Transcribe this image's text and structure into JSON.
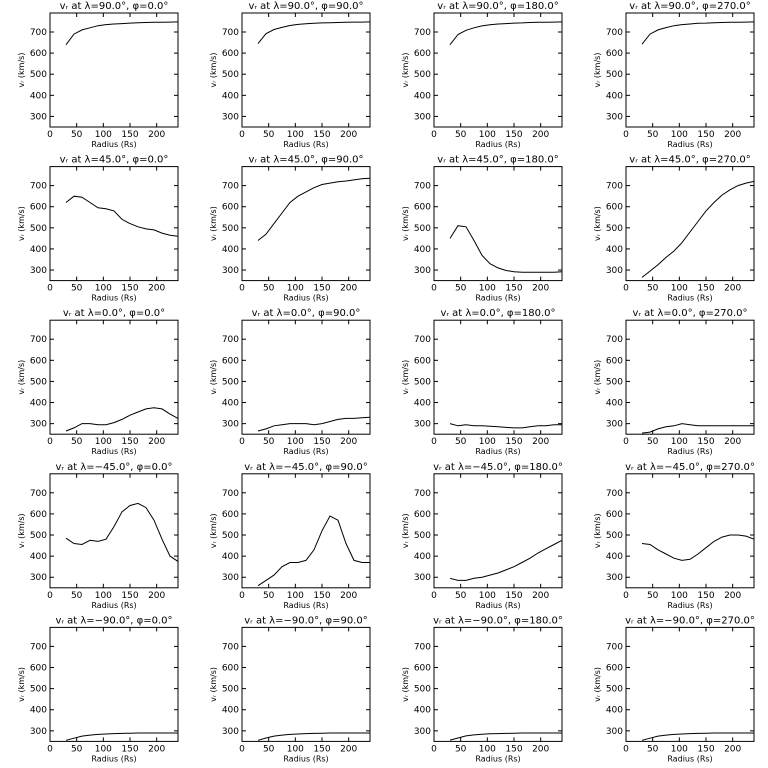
{
  "chart_data": [
    {
      "type": "line",
      "title": "vᵣ at λ=90.0°, φ=0.0°",
      "xlabel": "Radius (Rs)",
      "ylabel": "vᵣ (km/s)",
      "color": "#000000",
      "xlim": [
        0,
        240
      ],
      "xticks": [
        0,
        50,
        100,
        150,
        200
      ],
      "ylim": [
        250,
        790
      ],
      "yticks": [
        300,
        400,
        500,
        600,
        700
      ],
      "x": [
        30,
        45,
        60,
        75,
        90,
        105,
        120,
        135,
        150,
        165,
        180,
        195,
        210,
        225,
        240
      ],
      "values": [
        640,
        690,
        710,
        720,
        730,
        735,
        738,
        740,
        742,
        744,
        745,
        746,
        746,
        747,
        748
      ]
    },
    {
      "type": "line",
      "title": "vᵣ at λ=90.0°, φ=90.0°",
      "xlabel": "Radius (Rs)",
      "ylabel": "vᵣ (km/s)",
      "color": "#000000",
      "xlim": [
        0,
        240
      ],
      "xticks": [
        0,
        50,
        100,
        150,
        200
      ],
      "ylim": [
        250,
        790
      ],
      "yticks": [
        300,
        400,
        500,
        600,
        700
      ],
      "x": [
        30,
        45,
        60,
        75,
        90,
        105,
        120,
        135,
        150,
        165,
        180,
        195,
        210,
        225,
        240
      ],
      "values": [
        645,
        692,
        712,
        722,
        731,
        736,
        739,
        741,
        743,
        744,
        745,
        746,
        747,
        747,
        748
      ]
    },
    {
      "type": "line",
      "title": "vᵣ at λ=90.0°, φ=180.0°",
      "xlabel": "Radius (Rs)",
      "ylabel": "vᵣ (km/s)",
      "color": "#000000",
      "xlim": [
        0,
        240
      ],
      "xticks": [
        0,
        50,
        100,
        150,
        200
      ],
      "ylim": [
        250,
        790
      ],
      "yticks": [
        300,
        400,
        500,
        600,
        700
      ],
      "x": [
        30,
        45,
        60,
        75,
        90,
        105,
        120,
        135,
        150,
        165,
        180,
        195,
        210,
        225,
        240
      ],
      "values": [
        640,
        688,
        708,
        720,
        729,
        734,
        738,
        740,
        742,
        743,
        745,
        746,
        746,
        747,
        748
      ]
    },
    {
      "type": "line",
      "title": "vᵣ at λ=90.0°, φ=270.0°",
      "xlabel": "Radius (Rs)",
      "ylabel": "vᵣ (km/s)",
      "color": "#000000",
      "xlim": [
        0,
        240
      ],
      "xticks": [
        0,
        50,
        100,
        150,
        200
      ],
      "ylim": [
        250,
        790
      ],
      "yticks": [
        300,
        400,
        500,
        600,
        700
      ],
      "x": [
        30,
        45,
        60,
        75,
        90,
        105,
        120,
        135,
        150,
        165,
        180,
        195,
        210,
        225,
        240
      ],
      "values": [
        642,
        690,
        710,
        721,
        730,
        735,
        738,
        741,
        742,
        744,
        745,
        746,
        746,
        747,
        748
      ]
    },
    {
      "type": "line",
      "title": "vᵣ at λ=45.0°, φ=0.0°",
      "xlabel": "Radius (Rs)",
      "ylabel": "vᵣ (km/s)",
      "color": "#000000",
      "xlim": [
        0,
        240
      ],
      "xticks": [
        0,
        50,
        100,
        150,
        200
      ],
      "ylim": [
        250,
        790
      ],
      "yticks": [
        300,
        400,
        500,
        600,
        700
      ],
      "x": [
        30,
        45,
        60,
        75,
        90,
        105,
        120,
        135,
        150,
        165,
        180,
        195,
        210,
        225,
        240
      ],
      "values": [
        620,
        650,
        645,
        620,
        595,
        590,
        580,
        540,
        520,
        505,
        495,
        490,
        475,
        465,
        460
      ]
    },
    {
      "type": "line",
      "title": "vᵣ at λ=45.0°, φ=90.0°",
      "xlabel": "Radius (Rs)",
      "ylabel": "vᵣ (km/s)",
      "color": "#000000",
      "xlim": [
        0,
        240
      ],
      "xticks": [
        0,
        50,
        100,
        150,
        200
      ],
      "ylim": [
        250,
        790
      ],
      "yticks": [
        300,
        400,
        500,
        600,
        700
      ],
      "x": [
        30,
        45,
        60,
        75,
        90,
        105,
        120,
        135,
        150,
        165,
        180,
        195,
        210,
        225,
        240
      ],
      "values": [
        440,
        470,
        520,
        570,
        620,
        650,
        670,
        690,
        705,
        712,
        718,
        722,
        727,
        732,
        735
      ]
    },
    {
      "type": "line",
      "title": "vᵣ at λ=45.0°, φ=180.0°",
      "xlabel": "Radius (Rs)",
      "ylabel": "vᵣ (km/s)",
      "color": "#000000",
      "xlim": [
        0,
        240
      ],
      "xticks": [
        0,
        50,
        100,
        150,
        200
      ],
      "ylim": [
        250,
        790
      ],
      "yticks": [
        300,
        400,
        500,
        600,
        700
      ],
      "x": [
        30,
        45,
        60,
        75,
        90,
        105,
        120,
        135,
        150,
        165,
        180,
        195,
        210,
        225,
        240
      ],
      "values": [
        450,
        510,
        505,
        440,
        370,
        330,
        310,
        298,
        292,
        290,
        290,
        290,
        290,
        290,
        292
      ]
    },
    {
      "type": "line",
      "title": "vᵣ at λ=45.0°, φ=270.0°",
      "xlabel": "Radius (Rs)",
      "ylabel": "vᵣ (km/s)",
      "color": "#000000",
      "xlim": [
        0,
        240
      ],
      "xticks": [
        0,
        50,
        100,
        150,
        200
      ],
      "ylim": [
        250,
        790
      ],
      "yticks": [
        300,
        400,
        500,
        600,
        700
      ],
      "x": [
        30,
        45,
        60,
        75,
        90,
        105,
        120,
        135,
        150,
        165,
        180,
        195,
        210,
        225,
        240
      ],
      "values": [
        265,
        295,
        325,
        360,
        390,
        430,
        480,
        530,
        580,
        620,
        655,
        680,
        700,
        712,
        720
      ]
    },
    {
      "type": "line",
      "title": "vᵣ at λ=0.0°, φ=0.0°",
      "xlabel": "Radius (Rs)",
      "ylabel": "vᵣ (km/s)",
      "color": "#000000",
      "xlim": [
        0,
        240
      ],
      "xticks": [
        0,
        50,
        100,
        150,
        200
      ],
      "ylim": [
        250,
        790
      ],
      "yticks": [
        300,
        400,
        500,
        600,
        700
      ],
      "x": [
        30,
        45,
        60,
        75,
        90,
        105,
        120,
        135,
        150,
        165,
        180,
        195,
        210,
        225,
        240
      ],
      "values": [
        265,
        280,
        300,
        300,
        295,
        295,
        305,
        320,
        340,
        355,
        370,
        375,
        370,
        345,
        325
      ]
    },
    {
      "type": "line",
      "title": "vᵣ at λ=0.0°, φ=90.0°",
      "xlabel": "Radius (Rs)",
      "ylabel": "vᵣ (km/s)",
      "color": "#000000",
      "xlim": [
        0,
        240
      ],
      "xticks": [
        0,
        50,
        100,
        150,
        200
      ],
      "ylim": [
        250,
        790
      ],
      "yticks": [
        300,
        400,
        500,
        600,
        700
      ],
      "x": [
        30,
        45,
        60,
        75,
        90,
        105,
        120,
        135,
        150,
        165,
        180,
        195,
        210,
        225,
        240
      ],
      "values": [
        265,
        275,
        290,
        295,
        300,
        300,
        300,
        295,
        300,
        310,
        320,
        325,
        325,
        328,
        330
      ]
    },
    {
      "type": "line",
      "title": "vᵣ at λ=0.0°, φ=180.0°",
      "xlabel": "Radius (Rs)",
      "ylabel": "vᵣ (km/s)",
      "color": "#000000",
      "xlim": [
        0,
        240
      ],
      "xticks": [
        0,
        50,
        100,
        150,
        200
      ],
      "ylim": [
        250,
        790
      ],
      "yticks": [
        300,
        400,
        500,
        600,
        700
      ],
      "x": [
        30,
        45,
        60,
        75,
        90,
        105,
        120,
        135,
        150,
        165,
        180,
        195,
        210,
        225,
        240
      ],
      "values": [
        300,
        290,
        295,
        290,
        290,
        288,
        285,
        282,
        280,
        280,
        285,
        290,
        290,
        295,
        295
      ]
    },
    {
      "type": "line",
      "title": "vᵣ at λ=0.0°, φ=270.0°",
      "xlabel": "Radius (Rs)",
      "ylabel": "vᵣ (km/s)",
      "color": "#000000",
      "xlim": [
        0,
        240
      ],
      "xticks": [
        0,
        50,
        100,
        150,
        200
      ],
      "ylim": [
        250,
        790
      ],
      "yticks": [
        300,
        400,
        500,
        600,
        700
      ],
      "x": [
        30,
        45,
        60,
        75,
        90,
        105,
        120,
        135,
        150,
        165,
        180,
        195,
        210,
        225,
        240
      ],
      "values": [
        255,
        260,
        275,
        285,
        290,
        300,
        295,
        290,
        290,
        290,
        290,
        290,
        290,
        290,
        290
      ]
    },
    {
      "type": "line",
      "title": "vᵣ at λ=−45.0°, φ=0.0°",
      "xlabel": "Radius (Rs)",
      "ylabel": "vᵣ (km/s)",
      "color": "#000000",
      "xlim": [
        0,
        240
      ],
      "xticks": [
        0,
        50,
        100,
        150,
        200
      ],
      "ylim": [
        250,
        790
      ],
      "yticks": [
        300,
        400,
        500,
        600,
        700
      ],
      "x": [
        30,
        45,
        60,
        75,
        90,
        105,
        120,
        135,
        150,
        165,
        180,
        195,
        210,
        225,
        240
      ],
      "values": [
        485,
        460,
        455,
        475,
        470,
        480,
        540,
        610,
        640,
        650,
        630,
        570,
        480,
        400,
        375
      ]
    },
    {
      "type": "line",
      "title": "vᵣ at λ=−45.0°, φ=90.0°",
      "xlabel": "Radius (Rs)",
      "ylabel": "vᵣ (km/s)",
      "color": "#000000",
      "xlim": [
        0,
        240
      ],
      "xticks": [
        0,
        50,
        100,
        150,
        200
      ],
      "ylim": [
        250,
        790
      ],
      "yticks": [
        300,
        400,
        500,
        600,
        700
      ],
      "x": [
        30,
        45,
        60,
        75,
        90,
        105,
        120,
        135,
        150,
        165,
        180,
        195,
        210,
        225,
        240
      ],
      "values": [
        260,
        285,
        310,
        350,
        370,
        370,
        380,
        430,
        520,
        590,
        570,
        460,
        380,
        370,
        370
      ]
    },
    {
      "type": "line",
      "title": "vᵣ at λ=−45.0°, φ=180.0°",
      "xlabel": "Radius (Rs)",
      "ylabel": "vᵣ (km/s)",
      "color": "#000000",
      "xlim": [
        0,
        240
      ],
      "xticks": [
        0,
        50,
        100,
        150,
        200
      ],
      "ylim": [
        250,
        790
      ],
      "yticks": [
        300,
        400,
        500,
        600,
        700
      ],
      "x": [
        30,
        45,
        60,
        75,
        90,
        105,
        120,
        135,
        150,
        165,
        180,
        195,
        210,
        225,
        240
      ],
      "values": [
        295,
        285,
        285,
        295,
        300,
        310,
        320,
        335,
        350,
        370,
        390,
        415,
        435,
        455,
        475
      ]
    },
    {
      "type": "line",
      "title": "vᵣ at λ=−45.0°, φ=270.0°",
      "xlabel": "Radius (Rs)",
      "ylabel": "vᵣ (km/s)",
      "color": "#000000",
      "xlim": [
        0,
        240
      ],
      "xticks": [
        0,
        50,
        100,
        150,
        200
      ],
      "ylim": [
        250,
        790
      ],
      "yticks": [
        300,
        400,
        500,
        600,
        700
      ],
      "x": [
        30,
        45,
        60,
        75,
        90,
        105,
        120,
        135,
        150,
        165,
        180,
        195,
        210,
        225,
        240
      ],
      "values": [
        460,
        455,
        430,
        410,
        390,
        380,
        385,
        410,
        440,
        470,
        490,
        500,
        500,
        495,
        480
      ]
    },
    {
      "type": "line",
      "title": "vᵣ at λ=−90.0°, φ=0.0°",
      "xlabel": "Radius (Rs)",
      "ylabel": "vᵣ (km/s)",
      "color": "#000000",
      "xlim": [
        0,
        240
      ],
      "xticks": [
        0,
        50,
        100,
        150,
        200
      ],
      "ylim": [
        250,
        790
      ],
      "yticks": [
        300,
        400,
        500,
        600,
        700
      ],
      "x": [
        30,
        45,
        60,
        75,
        90,
        105,
        120,
        135,
        150,
        165,
        180,
        195,
        210,
        225,
        240
      ],
      "values": [
        255,
        265,
        275,
        280,
        283,
        285,
        287,
        288,
        289,
        290,
        290,
        290,
        290,
        290,
        290
      ]
    },
    {
      "type": "line",
      "title": "vᵣ at λ=−90.0°, φ=90.0°",
      "xlabel": "Radius (Rs)",
      "ylabel": "vᵣ (km/s)",
      "color": "#000000",
      "xlim": [
        0,
        240
      ],
      "xticks": [
        0,
        50,
        100,
        150,
        200
      ],
      "ylim": [
        250,
        790
      ],
      "yticks": [
        300,
        400,
        500,
        600,
        700
      ],
      "x": [
        30,
        45,
        60,
        75,
        90,
        105,
        120,
        135,
        150,
        165,
        180,
        195,
        210,
        225,
        240
      ],
      "values": [
        255,
        266,
        275,
        280,
        283,
        285,
        287,
        288,
        289,
        290,
        290,
        290,
        290,
        290,
        290
      ]
    },
    {
      "type": "line",
      "title": "vᵣ at λ=−90.0°, φ=180.0°",
      "xlabel": "Radius (Rs)",
      "ylabel": "vᵣ (km/s)",
      "color": "#000000",
      "xlim": [
        0,
        240
      ],
      "xticks": [
        0,
        50,
        100,
        150,
        200
      ],
      "ylim": [
        250,
        790
      ],
      "yticks": [
        300,
        400,
        500,
        600,
        700
      ],
      "x": [
        30,
        45,
        60,
        75,
        90,
        105,
        120,
        135,
        150,
        165,
        180,
        195,
        210,
        225,
        240
      ],
      "values": [
        256,
        266,
        276,
        281,
        284,
        286,
        287,
        288,
        289,
        290,
        290,
        290,
        290,
        290,
        290
      ]
    },
    {
      "type": "line",
      "title": "vᵣ at λ=−90.0°, φ=270.0°",
      "xlabel": "Radius (Rs)",
      "ylabel": "vᵣ (km/s)",
      "color": "#000000",
      "xlim": [
        0,
        240
      ],
      "xticks": [
        0,
        50,
        100,
        150,
        200
      ],
      "ylim": [
        250,
        790
      ],
      "yticks": [
        300,
        400,
        500,
        600,
        700
      ],
      "x": [
        30,
        45,
        60,
        75,
        90,
        105,
        120,
        135,
        150,
        165,
        180,
        195,
        210,
        225,
        240
      ],
      "values": [
        255,
        265,
        275,
        280,
        283,
        285,
        287,
        288,
        289,
        290,
        290,
        290,
        290,
        290,
        290
      ]
    }
  ]
}
